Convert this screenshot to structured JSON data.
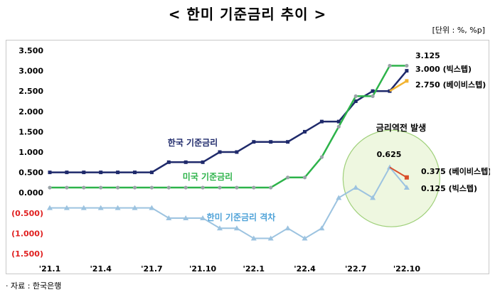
{
  "header": {
    "title": "< 한미 기준금리 추이 >",
    "unit": "[단위 : %, %p]"
  },
  "footer": {
    "source": "· 자료 : 한국은행"
  },
  "chart_data": {
    "type": "line",
    "title": "< 한미 기준금리 추이 >",
    "xlabel": "",
    "ylabel": "",
    "ylim": [
      -1.5,
      3.5
    ],
    "yticks": [
      "3.500",
      "3.000",
      "2.500",
      "2.000",
      "1.500",
      "1.000",
      "0.500",
      "0.000",
      "(0.500)",
      "(1.000)",
      "(1.500)"
    ],
    "x": [
      "'21.1",
      "",
      "",
      "'21.4",
      "",
      "",
      "'21.7",
      "",
      "",
      "'21.10",
      "",
      "",
      "'22.1",
      "",
      "",
      "'22.4",
      "",
      "",
      "'22.7",
      "",
      "",
      "'22.10",
      ""
    ],
    "series": [
      {
        "name": "한국 기준금리",
        "color": "#1f2a6b",
        "values": [
          0.5,
          0.5,
          0.5,
          0.5,
          0.5,
          0.5,
          0.5,
          0.75,
          0.75,
          0.75,
          1.0,
          1.0,
          1.25,
          1.25,
          1.25,
          1.5,
          1.75,
          1.75,
          2.25,
          2.5,
          2.5,
          3.0,
          null
        ]
      },
      {
        "name": "미국 기준금리",
        "color": "#2db34a",
        "values": [
          0.125,
          0.125,
          0.125,
          0.125,
          0.125,
          0.125,
          0.125,
          0.125,
          0.125,
          0.125,
          0.125,
          0.125,
          0.125,
          0.125,
          0.375,
          0.375,
          0.875,
          1.625,
          2.375,
          2.375,
          3.125,
          3.125,
          null
        ]
      },
      {
        "name": "한미 기준금리 격차",
        "color": "#9cc3e0",
        "values": [
          -0.375,
          -0.375,
          -0.375,
          -0.375,
          -0.375,
          -0.375,
          -0.375,
          -0.625,
          -0.625,
          -0.625,
          -0.875,
          -0.875,
          -1.125,
          -1.125,
          -0.875,
          -1.125,
          -0.875,
          -0.125,
          0.125,
          -0.125,
          0.625,
          0.125,
          null
        ]
      }
    ],
    "scenario": {
      "korea_big_step": 3.0,
      "korea_baby_step": 2.75,
      "baby_step_color": "#f2b330",
      "gap_baby_step": 0.375,
      "gap_baby_color": "#d94f2b"
    },
    "annotations": {
      "us_end": "3.125",
      "korea_big": "3.000 (빅스텝)",
      "korea_baby": "2.750 (베이비스텝)",
      "inversion": "금리역전 발생",
      "gap_peak": "0.625",
      "gap_baby": "0.375 (베이비스텝)",
      "gap_big": "0.125 (빅스텝)"
    }
  }
}
